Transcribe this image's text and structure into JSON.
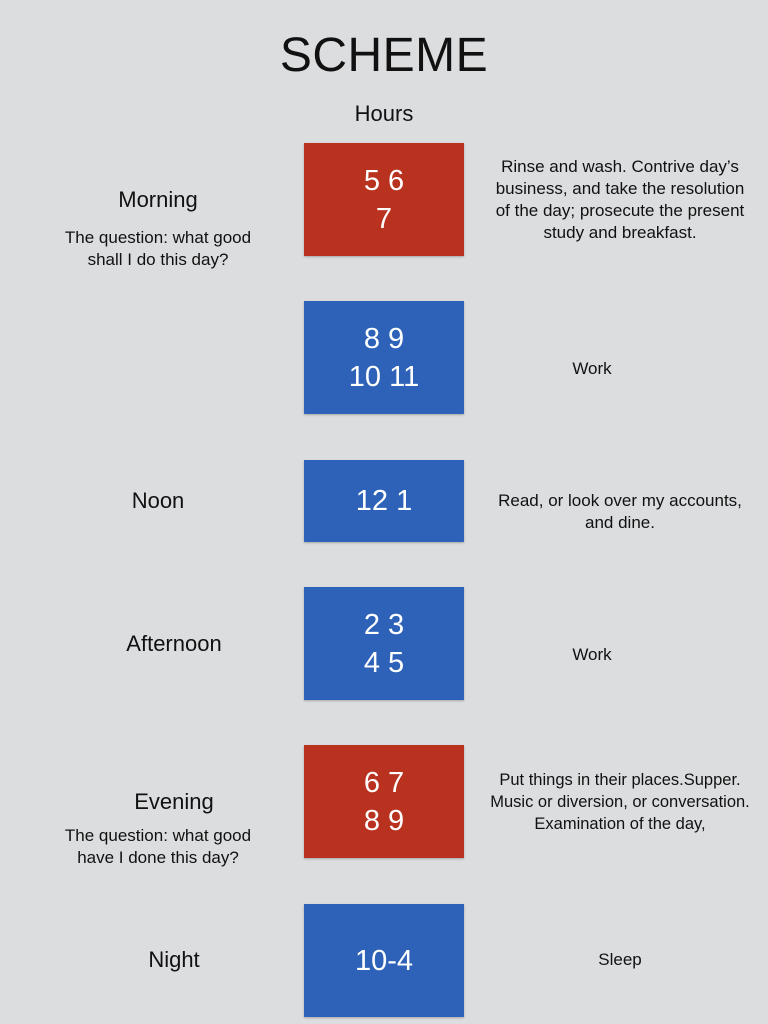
{
  "title": "SCHEME",
  "hours_label": "Hours",
  "colors": {
    "background": "#dcdddf",
    "morning_evening_box": "#b8321f",
    "work_box": "#2d62b8"
  },
  "rows": {
    "morning": {
      "period": "Morning",
      "question_line1": "The question: what good",
      "question_line2": "shall I do this day?",
      "hours_line1": "5 6",
      "hours_line2": "7",
      "desc_line1": "Rinse and wash. Contrive day’s",
      "desc_line2": "business, and take the resolution",
      "desc_line3": "of the day;  prosecute the present",
      "desc_line4": "study and breakfast."
    },
    "work1": {
      "hours_line1": "8 9",
      "hours_line2": "10 11",
      "desc": "Work"
    },
    "noon": {
      "period": "Noon",
      "hours": "12 1",
      "desc_line1": "Read, or look over my accounts,",
      "desc_line2": "and dine."
    },
    "afternoon": {
      "period": "Afternoon",
      "hours_line1": "2 3",
      "hours_line2": "4 5",
      "desc": "Work"
    },
    "evening": {
      "period": "Evening",
      "question_line1": "The question: what good",
      "question_line2": "have I done this day?",
      "hours_line1": "6 7",
      "hours_line2": "8 9",
      "desc_line1": "Put things in their places.Supper.",
      "desc_line2": "Music or diversion, or conversation.",
      "desc_line3": "Examination of the day,"
    },
    "night": {
      "period": "Night",
      "hours": "10-4",
      "desc": "Sleep"
    }
  }
}
